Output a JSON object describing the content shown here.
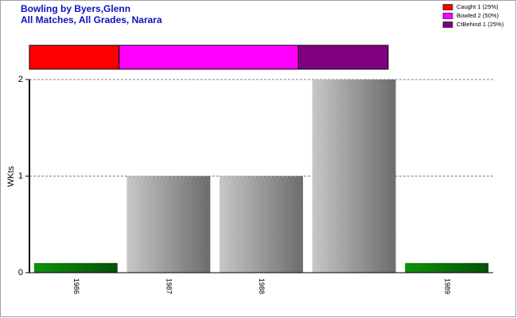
{
  "chart_data": [
    {
      "type": "bar",
      "title": "Bowling by Byers,Glenn",
      "subtitle": "All Matches, All Grades, Narara",
      "y_label": "WKts",
      "categories": [
        "1986",
        "1987",
        "1988",
        null,
        "1989"
      ],
      "values": [
        0.1,
        1,
        1,
        2,
        0.1
      ],
      "colors": [
        "#0b7a0b",
        "#a6a6a6",
        "#a6a6a6",
        "#a6a6a6",
        "#0b7a0b"
      ],
      "ylim": [
        0,
        2
      ],
      "yticks": [
        0,
        1,
        2
      ],
      "grid": true
    },
    {
      "type": "stacked-hbar",
      "series": [
        {
          "name": "Caught 1 (25%)",
          "color": "#ff0000",
          "values": [
            25
          ]
        },
        {
          "name": "Bowled 2 (50%)",
          "color": "#ff00ff",
          "values": [
            50
          ]
        },
        {
          "name": "CtBehind 1 (25%)",
          "color": "#800080",
          "values": [
            25
          ]
        }
      ],
      "xlim": [
        0,
        100
      ],
      "legend": "top-right"
    }
  ]
}
